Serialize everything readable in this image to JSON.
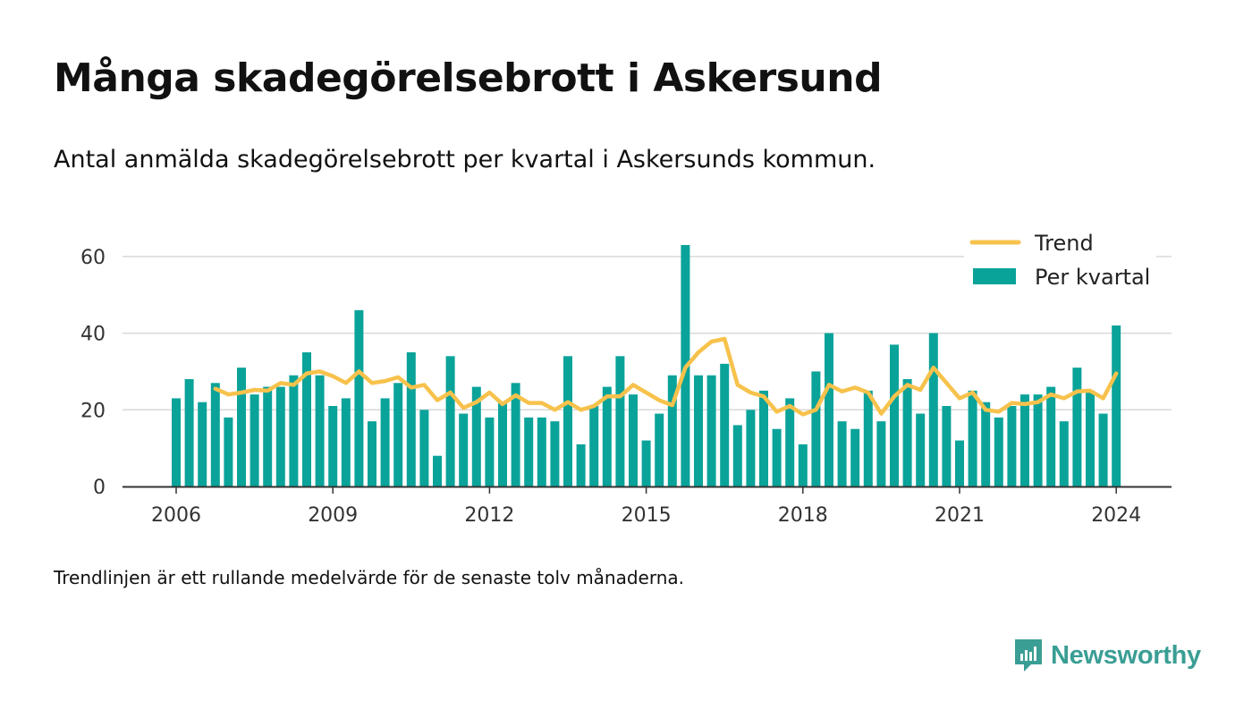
{
  "header": {
    "title": "Många skadegörelsebrott i Askersund",
    "subtitle": "Antal anmälda skadegörelsebrott per kvartal i Askersunds kommun."
  },
  "footer": {
    "note": "Trendlinjen är ett rullande medelvärde för de senaste tolv månaderna.",
    "brand": "Newsworthy"
  },
  "colors": {
    "bar": "#0aa39a",
    "trend": "#f7c24c",
    "grid": "#d9d9d9",
    "axis": "#333333",
    "brand": "#3a9e94"
  },
  "chart_data": {
    "type": "bar",
    "x_start": 2006,
    "x_step_years": 0.25,
    "xticks": [
      "2006",
      "2009",
      "2012",
      "2015",
      "2018",
      "2021",
      "2024"
    ],
    "yticks": [
      0,
      20,
      40,
      60
    ],
    "ylim": [
      0,
      70
    ],
    "grid": true,
    "legend_position": "top-right",
    "series": [
      {
        "name": "Per kvartal",
        "type": "bar",
        "values": [
          23,
          28,
          22,
          27,
          18,
          31,
          24,
          26,
          26,
          29,
          35,
          29,
          21,
          23,
          46,
          17,
          23,
          27,
          35,
          20,
          8,
          34,
          19,
          26,
          18,
          22,
          27,
          18,
          18,
          17,
          34,
          11,
          21,
          26,
          34,
          24,
          12,
          19,
          29,
          63,
          29,
          29,
          32,
          16,
          20,
          25,
          15,
          23,
          11,
          30,
          40,
          17,
          15,
          25,
          17,
          37,
          28,
          19,
          40,
          21,
          12,
          25,
          22,
          18,
          21,
          24,
          24,
          26,
          17,
          31,
          25,
          19,
          42
        ]
      },
      {
        "name": "Trend",
        "type": "line",
        "values": [
          null,
          null,
          null,
          25.5,
          24,
          24.5,
          25.2,
          25,
          27,
          26.5,
          29.5,
          30,
          28.8,
          27,
          30,
          27,
          27.5,
          28.5,
          25.8,
          26.5,
          22.5,
          24.5,
          20.5,
          22,
          24.5,
          21.5,
          23.8,
          21.8,
          21.8,
          20,
          22,
          20,
          21,
          23.5,
          23.5,
          26.5,
          24.5,
          22.5,
          21.2,
          31,
          35,
          37.8,
          38.5,
          26.5,
          24.5,
          23.5,
          19.5,
          21,
          18.8,
          20,
          26.5,
          24.8,
          25.8,
          24.5,
          19,
          23.5,
          26.5,
          25.2,
          31,
          27,
          23,
          24.5,
          20,
          19.5,
          21.8,
          21.5,
          22,
          24,
          23,
          24.8,
          25,
          23,
          29.5
        ]
      }
    ]
  }
}
